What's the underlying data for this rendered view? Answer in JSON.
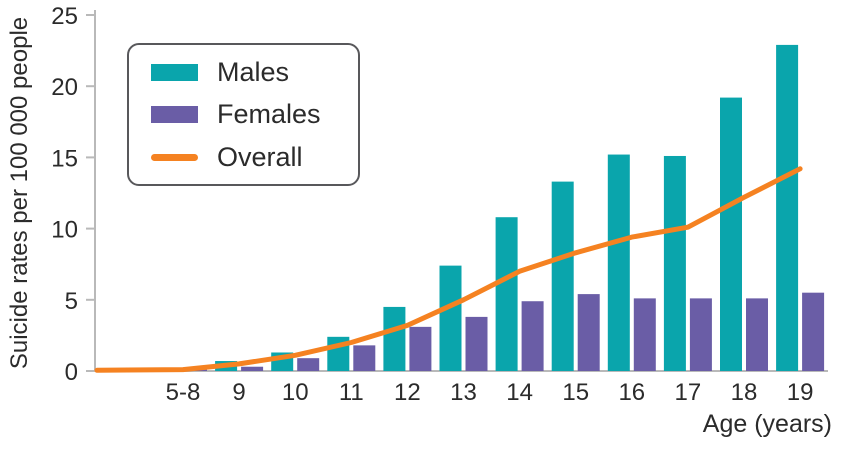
{
  "chart_data": {
    "type": "bar",
    "title": "",
    "ylabel": "Suicide rates per 100 000 people",
    "xlabel": "Age (years)",
    "categories": [
      "5-8",
      "9",
      "10",
      "11",
      "12",
      "13",
      "14",
      "15",
      "16",
      "17",
      "18",
      "19"
    ],
    "y_ticks": [
      0,
      5,
      10,
      15,
      20,
      25
    ],
    "ylim": [
      0,
      25
    ],
    "grid": false,
    "legend_position": "top-left",
    "series": [
      {
        "name": "Males",
        "type": "bar",
        "color": "#0aa5ac",
        "values": [
          0.2,
          0.7,
          1.3,
          2.4,
          4.5,
          7.4,
          10.8,
          13.3,
          15.2,
          15.1,
          19.2,
          22.9
        ]
      },
      {
        "name": "Females",
        "type": "bar",
        "color": "#6a5da6",
        "values": [
          0.1,
          0.3,
          0.9,
          1.8,
          3.1,
          3.8,
          4.9,
          5.4,
          5.1,
          5.1,
          5.1,
          5.5
        ]
      },
      {
        "name": "Overall",
        "type": "line",
        "color": "#f58221",
        "values": [
          0.1,
          0.5,
          1.1,
          2.0,
          3.2,
          5.0,
          7.0,
          8.3,
          9.4,
          10.1,
          12.2,
          14.2
        ]
      }
    ]
  },
  "colors": {
    "axis": "#b9b9b9",
    "text": "#2b2b2b",
    "legend_border": "#58585b"
  }
}
